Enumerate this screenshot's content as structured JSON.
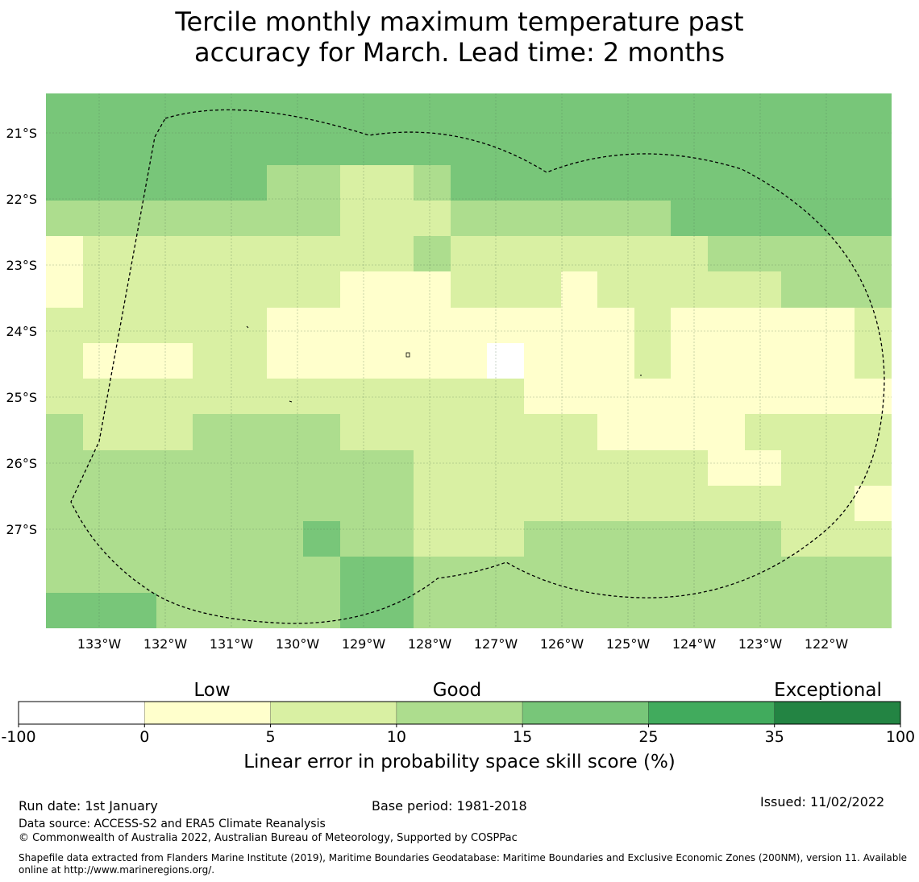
{
  "title": {
    "line1": "Tercile monthly maximum temperature past",
    "line2": "accuracy for March. Lead time: 2 months"
  },
  "map": {
    "lat_labels": [
      "21°S",
      "22°S",
      "23°S",
      "24°S",
      "25°S",
      "26°S",
      "27°S"
    ],
    "lon_labels": [
      "133°W",
      "132°W",
      "131°W",
      "130°W",
      "129°W",
      "128°W",
      "127°W",
      "126°W",
      "125°W",
      "124°W",
      "123°W",
      "122°W"
    ],
    "grid_rows": [
      [
        4,
        4,
        4,
        4,
        4,
        4,
        4,
        4,
        4,
        4,
        4,
        4,
        4,
        4,
        4,
        4,
        4,
        4,
        4,
        4,
        4,
        4,
        4
      ],
      [
        4,
        4,
        4,
        4,
        4,
        4,
        4,
        4,
        4,
        4,
        4,
        4,
        4,
        4,
        4,
        4,
        4,
        4,
        4,
        4,
        4,
        4,
        4
      ],
      [
        4,
        4,
        4,
        4,
        4,
        4,
        3,
        3,
        2,
        2,
        3,
        4,
        4,
        4,
        4,
        4,
        4,
        4,
        4,
        4,
        4,
        4,
        4
      ],
      [
        3,
        3,
        3,
        3,
        3,
        3,
        3,
        3,
        2,
        2,
        2,
        3,
        3,
        3,
        3,
        3,
        3,
        4,
        4,
        4,
        4,
        4,
        4
      ],
      [
        1,
        2,
        2,
        2,
        2,
        2,
        2,
        2,
        2,
        2,
        3,
        2,
        2,
        2,
        2,
        2,
        2,
        2,
        3,
        3,
        3,
        3,
        3
      ],
      [
        1,
        2,
        2,
        2,
        2,
        2,
        2,
        2,
        1,
        1,
        1,
        2,
        2,
        2,
        1,
        2,
        2,
        2,
        2,
        2,
        3,
        3,
        3
      ],
      [
        2,
        2,
        2,
        2,
        2,
        2,
        1,
        1,
        1,
        1,
        1,
        1,
        1,
        1,
        1,
        1,
        2,
        1,
        1,
        1,
        1,
        1,
        2
      ],
      [
        2,
        1,
        1,
        1,
        2,
        2,
        1,
        1,
        1,
        1,
        1,
        1,
        0,
        1,
        1,
        1,
        2,
        1,
        1,
        1,
        1,
        1,
        2
      ],
      [
        2,
        2,
        2,
        2,
        2,
        2,
        2,
        2,
        2,
        2,
        2,
        2,
        2,
        1,
        1,
        1,
        1,
        1,
        1,
        1,
        1,
        1,
        1
      ],
      [
        3,
        2,
        2,
        2,
        3,
        3,
        3,
        3,
        2,
        2,
        2,
        2,
        2,
        2,
        2,
        1,
        1,
        1,
        1,
        2,
        2,
        2,
        2
      ],
      [
        3,
        3,
        3,
        3,
        3,
        3,
        3,
        3,
        3,
        3,
        2,
        2,
        2,
        2,
        2,
        2,
        2,
        2,
        1,
        1,
        2,
        2,
        2
      ],
      [
        3,
        3,
        3,
        3,
        3,
        3,
        3,
        3,
        3,
        3,
        2,
        2,
        2,
        2,
        2,
        2,
        2,
        2,
        2,
        2,
        2,
        2,
        1
      ],
      [
        3,
        3,
        3,
        3,
        3,
        3,
        3,
        4,
        3,
        3,
        2,
        2,
        2,
        3,
        3,
        3,
        3,
        3,
        3,
        3,
        2,
        2,
        2
      ],
      [
        3,
        3,
        3,
        3,
        3,
        3,
        3,
        3,
        4,
        4,
        3,
        3,
        3,
        3,
        3,
        3,
        3,
        3,
        3,
        3,
        3,
        3,
        3
      ],
      [
        4,
        4,
        4,
        3,
        3,
        3,
        3,
        3,
        4,
        4,
        3,
        3,
        3,
        3,
        3,
        3,
        3,
        3,
        3,
        3,
        3,
        3,
        3
      ]
    ]
  },
  "colorbar": {
    "categories": [
      "Low",
      "Good",
      "Exceptional"
    ],
    "ticks": [
      "-100",
      "0",
      "5",
      "10",
      "15",
      "25",
      "35",
      "100"
    ],
    "colors": [
      "#ffffff",
      "#ffffcc",
      "#d9f0a3",
      "#addd8e",
      "#78c679",
      "#41ab5d",
      "#238443"
    ],
    "label": "Linear error in probability space skill score (%)"
  },
  "footer": {
    "run_date": "Run date: 1st January",
    "base_period": "Base period: 1981-2018",
    "issued": "Issued: 11/02/2022",
    "data_source": "Data source: ACCESS-S2 and ERA5 Climate Reanalysis",
    "copyright": "© Commonwealth of Australia 2022, Australian Bureau of Meteorology, Supported by COSPPac",
    "shapefile": "Shapefile data extracted from Flanders Marine Institute (2019), Maritime Boundaries Geodatabase: Maritime Boundaries and Exclusive Economic Zones (200NM), version 11. Available online at http://www.marineregions.org/."
  }
}
